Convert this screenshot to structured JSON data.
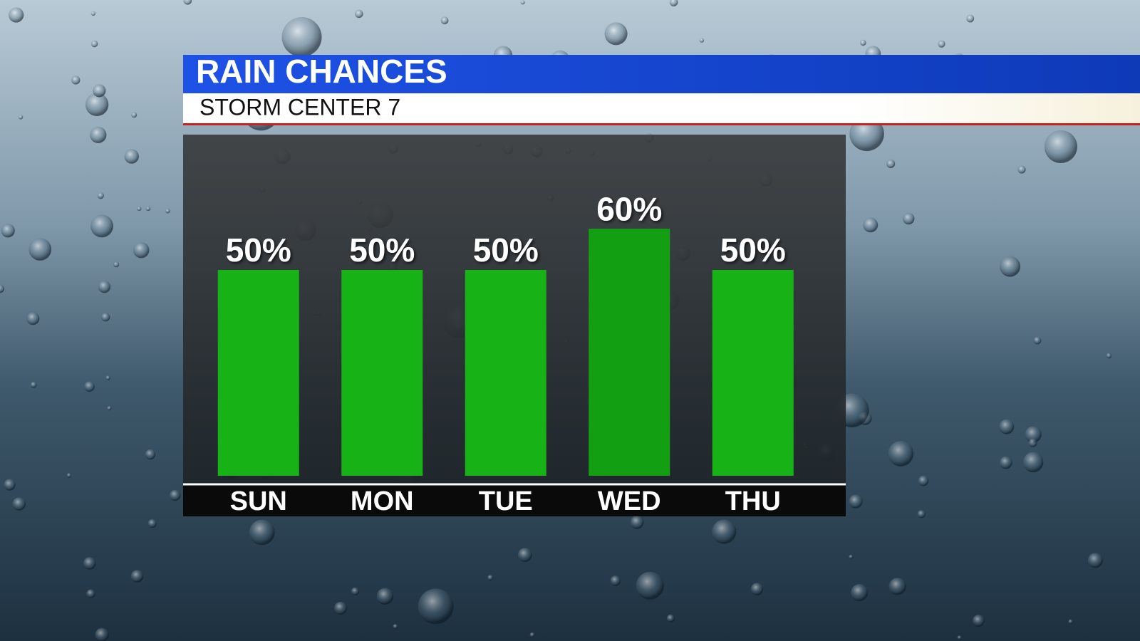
{
  "chart_data": {
    "type": "bar",
    "title": "RAIN CHANCES",
    "subtitle": "STORM CENTER 7",
    "categories": [
      "SUN",
      "MON",
      "TUE",
      "WED",
      "THU"
    ],
    "values": [
      50,
      50,
      50,
      60,
      50
    ],
    "value_labels": [
      "50%",
      "50%",
      "50%",
      "60%",
      "50%"
    ],
    "colors": [
      "#17b316",
      "#17b316",
      "#17b316",
      "#12a012",
      "#17b316"
    ]
  }
}
